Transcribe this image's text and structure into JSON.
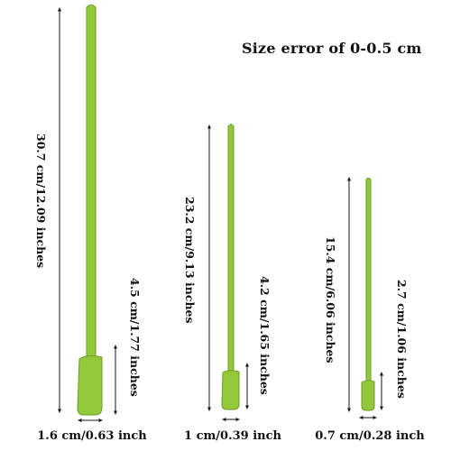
{
  "title": "Size error of 0-0.5 cm",
  "colors": {
    "spatula_fill": "#93c83b",
    "spatula_edge": "#6f9e26",
    "line": "#1a1a1a"
  },
  "spatulas": [
    {
      "size": "large",
      "total_length_label": "30.7 cm/12.09 inches",
      "head_length_label": "4.5 cm/1.77 inches",
      "head_width_label": "1.6 cm/0.63 inch"
    },
    {
      "size": "medium",
      "total_length_label": "23.2 cm/9.13 inches",
      "head_length_label": "4.2 cm/1.65 inches",
      "head_width_label": "1 cm/0.39 inch"
    },
    {
      "size": "small",
      "total_length_label": "15.4 cm/6.06 inches",
      "head_length_label": "2.7 cm/1.06 inches",
      "head_width_label": "0.7 cm/0.28 inch"
    }
  ]
}
